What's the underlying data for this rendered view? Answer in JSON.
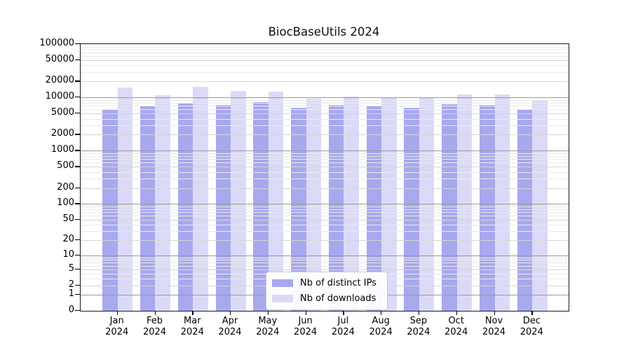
{
  "chart_data": {
    "type": "bar",
    "title": "BiocBaseUtils 2024",
    "y_scale": "log10(1+x)",
    "ylim": [
      0,
      100000
    ],
    "grid": true,
    "legend_position": "bottom-center",
    "categories": [
      "Jan 2024",
      "Feb 2024",
      "Mar 2024",
      "Apr 2024",
      "May 2024",
      "Jun 2024",
      "Jul 2024",
      "Aug 2024",
      "Sep 2024",
      "Oct 2024",
      "Nov 2024",
      "Dec 2024"
    ],
    "series": [
      {
        "name": "Nb of distinct IPs",
        "color": "#a8a8ee",
        "values": [
          6000,
          7000,
          7800,
          7200,
          8200,
          6450,
          7300,
          6700,
          6500,
          7400,
          7250,
          5950
        ]
      },
      {
        "name": "Nb of downloads",
        "color": "#dadaf8",
        "values": [
          15600,
          10900,
          15800,
          13100,
          12800,
          9400,
          10400,
          9900,
          10100,
          11500,
          11400,
          8800
        ]
      }
    ],
    "y_ticks": [
      100000,
      50000,
      20000,
      10000,
      5000,
      2000,
      1000,
      500,
      200,
      100,
      50,
      20,
      10,
      5,
      2,
      1,
      0
    ]
  },
  "colors": {
    "grid_major": "#9a9a9a",
    "grid_mid": "#d6d6d6",
    "grid_minor": "#e9e9e9",
    "frame": "#1a1a1a",
    "background": "#ffffff"
  }
}
